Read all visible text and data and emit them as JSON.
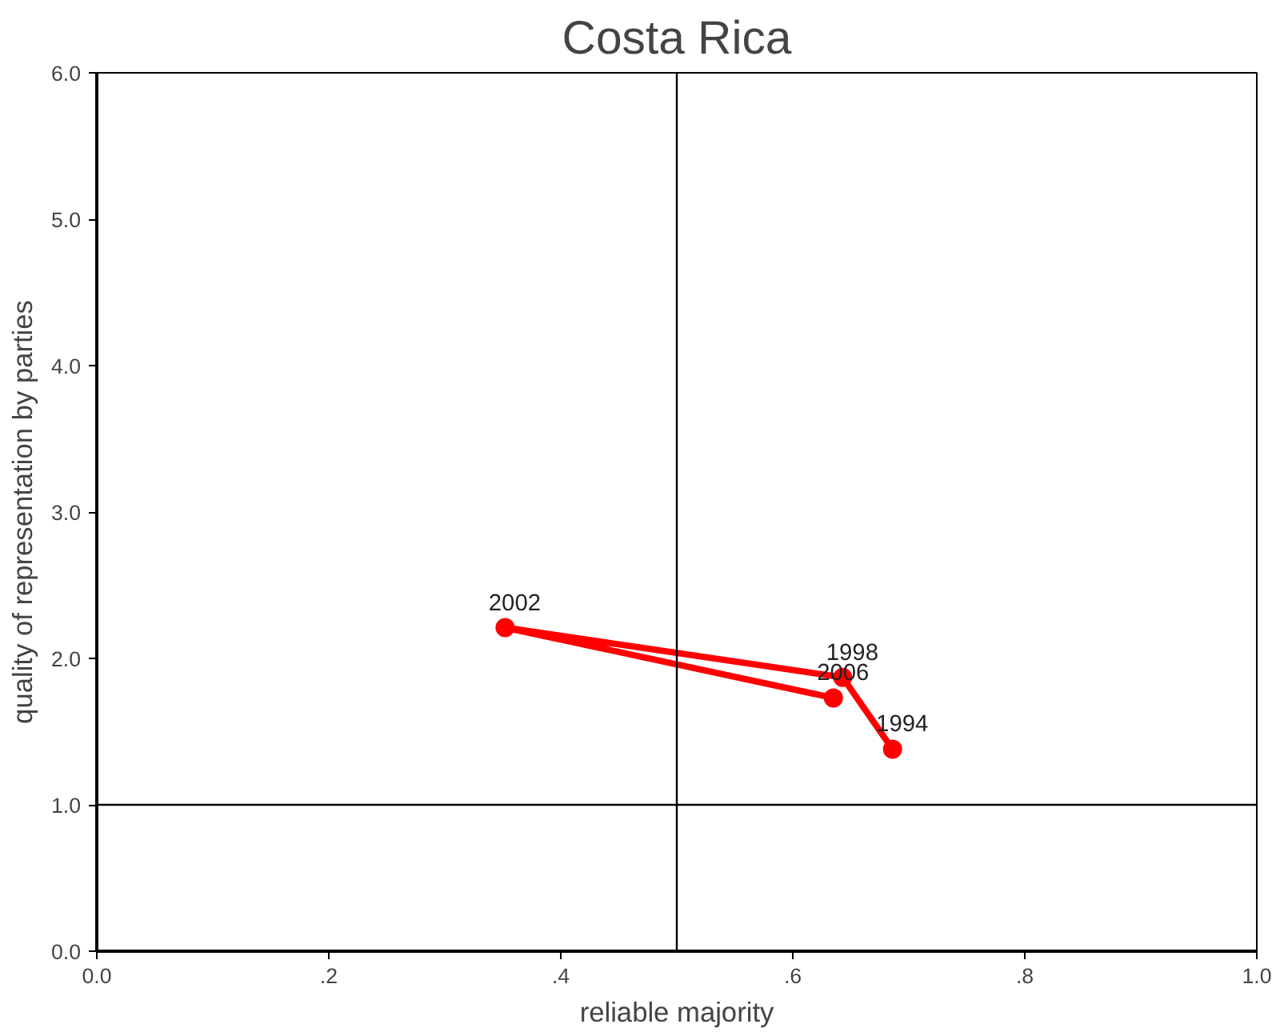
{
  "chart_data": {
    "type": "line",
    "title": "Costa Rica",
    "xlabel": "reliable majority",
    "ylabel": "quality of representation by parties",
    "series": [
      {
        "color": "#ff0000",
        "x": [
          0.686,
          0.643,
          0.352,
          0.635
        ],
        "values": [
          1.38,
          1.87,
          2.21,
          1.73
        ]
      }
    ],
    "marker": "circle",
    "line_style": "solid",
    "grid": false,
    "xlim": [
      0,
      1
    ],
    "ylim": [
      0,
      6
    ],
    "xticks": [
      {
        "value": 0,
        "label": "0.0"
      },
      {
        "value": 0.2,
        "label": ".2"
      },
      {
        "value": 0.4,
        "label": ".4"
      },
      {
        "value": 0.6,
        "label": ".6"
      },
      {
        "value": 0.8,
        "label": ".8"
      },
      {
        "value": 1,
        "label": "1.0"
      }
    ],
    "yticks": [
      {
        "value": 0,
        "label": "0.0"
      },
      {
        "value": 1,
        "label": "1.0"
      },
      {
        "value": 2,
        "label": "2.0"
      },
      {
        "value": 3,
        "label": "3.0"
      },
      {
        "value": 4,
        "label": "4.0"
      },
      {
        "value": 5,
        "label": "5.0"
      },
      {
        "value": 6,
        "label": "6.0"
      }
    ],
    "ref_lines": [
      {
        "axis": "x",
        "value": 0.5,
        "color": "#000000"
      },
      {
        "axis": "y",
        "value": 1.0,
        "color": "#000000"
      }
    ],
    "annotations": [
      {
        "text": "1994",
        "x": 0.686,
        "y": 1.38
      },
      {
        "text": "1998",
        "x": 0.643,
        "y": 1.87
      },
      {
        "text": "2002",
        "x": 0.352,
        "y": 2.21
      },
      {
        "text": "2006",
        "x": 0.635,
        "y": 1.73
      }
    ]
  }
}
